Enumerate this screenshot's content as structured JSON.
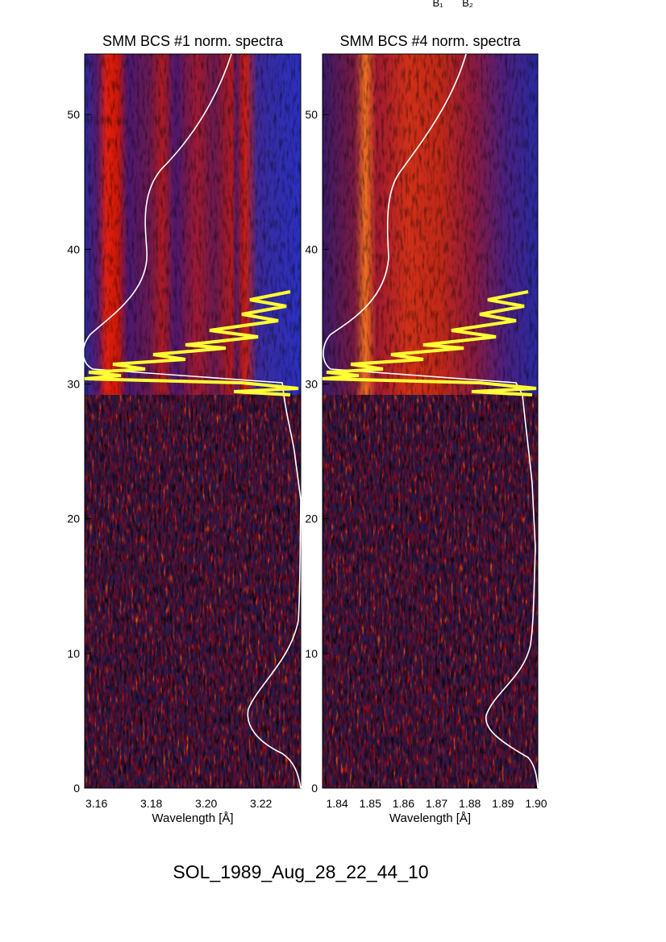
{
  "figure_title": "SOL_1989_Aug_28_22_44_10",
  "annotations": [
    "B₁",
    "B₂"
  ],
  "chart_data": [
    {
      "type": "spectrogram",
      "title": "SMM BCS #1 norm. spectra",
      "xlabel": "Wavelength [Å]",
      "xlim": [
        3.1557,
        3.2345
      ],
      "xticks": [
        3.16,
        3.18,
        {
          "value": 3.2,
          "label": "3.20"
        },
        3.22
      ],
      "ylim": [
        0,
        54.5
      ],
      "yticks": [
        0,
        10,
        20,
        30,
        40,
        50
      ]
    },
    {
      "type": "spectrogram",
      "title": "SMM BCS #4 norm. spectra",
      "xlabel": "Wavelength [Å]",
      "xlim": [
        1.8356,
        1.9005
      ],
      "xticks": [
        1.84,
        1.85,
        1.86,
        1.87,
        1.88,
        1.89,
        {
          "value": 1.9,
          "label": "1.90"
        }
      ],
      "ylim": [
        0,
        54.5
      ],
      "yticks": [
        0,
        10,
        20,
        30,
        40,
        50
      ]
    }
  ]
}
